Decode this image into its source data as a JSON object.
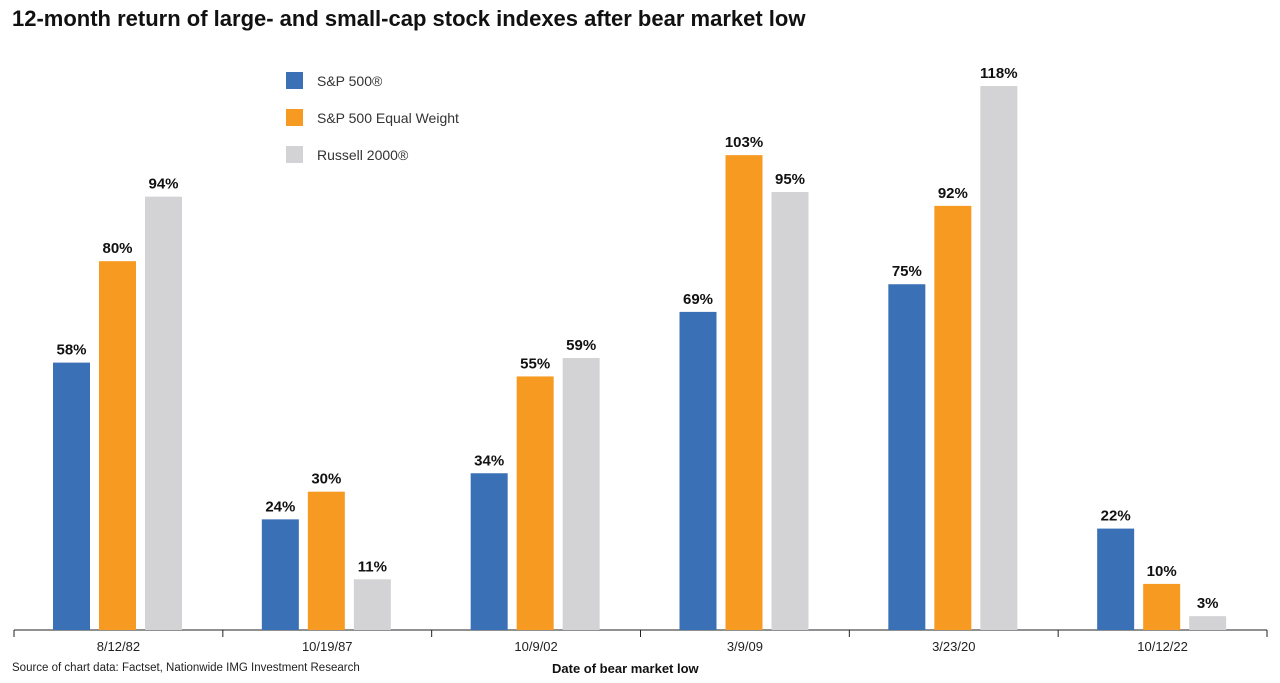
{
  "chart_data": {
    "type": "bar",
    "title": "12-month return of large- and small-cap stock indexes after bear market low",
    "xlabel": "Date of bear market low",
    "ylabel": "",
    "source": "Source of chart data: Factset, Nationwide IMG Investment Research",
    "categories": [
      "8/12/82",
      "10/19/87",
      "10/9/02",
      "3/9/09",
      "3/23/20",
      "10/12/22"
    ],
    "series": [
      {
        "name": "S&P 500®",
        "color": "#3a70b5",
        "values": [
          58,
          24,
          34,
          69,
          75,
          22
        ]
      },
      {
        "name": "S&P 500 Equal Weight",
        "color": "#f79a21",
        "values": [
          80,
          30,
          55,
          103,
          92,
          10
        ]
      },
      {
        "name": "Russell 2000®",
        "color": "#d3d3d5",
        "values": [
          94,
          11,
          59,
          95,
          118,
          3
        ]
      }
    ],
    "value_suffix": "%",
    "ylim": [
      0,
      118
    ],
    "grid": false,
    "legend_position": "top-left"
  }
}
